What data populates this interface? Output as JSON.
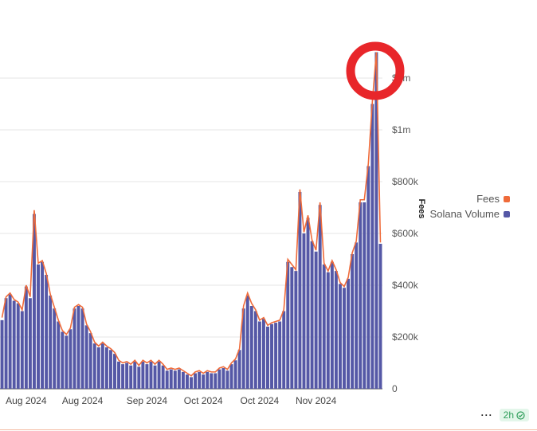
{
  "chart_data": {
    "type": "bar",
    "title": "",
    "ylabel": "Fees",
    "ylim": [
      0,
      1200000
    ],
    "y_ticks": [
      {
        "value": 0,
        "label": "0"
      },
      {
        "value": 200000,
        "label": "$200k"
      },
      {
        "value": 400000,
        "label": "$400k"
      },
      {
        "value": 600000,
        "label": "$600k"
      },
      {
        "value": 800000,
        "label": "$800k"
      },
      {
        "value": 1000000,
        "label": "$1m"
      },
      {
        "value": 1200000,
        "label": "$1m"
      }
    ],
    "x_ticks": [
      {
        "index": 6,
        "label": "Aug 2024"
      },
      {
        "index": 20,
        "label": "Aug 2024"
      },
      {
        "index": 36,
        "label": "Sep 2024"
      },
      {
        "index": 50,
        "label": "Oct 2024"
      },
      {
        "index": 64,
        "label": "Oct 2024"
      },
      {
        "index": 78,
        "label": "Nov 2024"
      }
    ],
    "legend_position": "right",
    "series": [
      {
        "name": "Solana Volume",
        "color": "#5558a6",
        "values": [
          265000,
          350000,
          365000,
          340000,
          330000,
          300000,
          395000,
          350000,
          675000,
          480000,
          490000,
          440000,
          360000,
          310000,
          260000,
          220000,
          205000,
          230000,
          310000,
          320000,
          310000,
          245000,
          215000,
          175000,
          160000,
          175000,
          160000,
          150000,
          135000,
          105000,
          95000,
          100000,
          90000,
          105000,
          85000,
          105000,
          95000,
          105000,
          90000,
          105000,
          90000,
          70000,
          75000,
          70000,
          75000,
          65000,
          55000,
          45000,
          60000,
          65000,
          55000,
          65000,
          60000,
          60000,
          75000,
          80000,
          70000,
          95000,
          110000,
          150000,
          310000,
          360000,
          320000,
          300000,
          260000,
          270000,
          240000,
          250000,
          255000,
          260000,
          300000,
          490000,
          470000,
          455000,
          760000,
          600000,
          660000,
          570000,
          530000,
          710000,
          480000,
          450000,
          490000,
          455000,
          405000,
          390000,
          425000,
          520000,
          565000,
          720000,
          720000,
          860000,
          1100000,
          1300000,
          560000
        ]
      },
      {
        "name": "Fees",
        "color": "#ef6b3a",
        "values": [
          275000,
          355000,
          370000,
          345000,
          335000,
          305000,
          400000,
          355000,
          690000,
          485000,
          495000,
          445000,
          365000,
          315000,
          265000,
          225000,
          210000,
          235000,
          315000,
          325000,
          315000,
          250000,
          220000,
          180000,
          165000,
          180000,
          165000,
          155000,
          140000,
          110000,
          100000,
          105000,
          95000,
          110000,
          90000,
          110000,
          100000,
          110000,
          95000,
          110000,
          95000,
          75000,
          80000,
          75000,
          80000,
          70000,
          60000,
          50000,
          65000,
          70000,
          60000,
          70000,
          65000,
          65000,
          80000,
          85000,
          75000,
          100000,
          115000,
          155000,
          320000,
          370000,
          330000,
          305000,
          265000,
          275000,
          245000,
          255000,
          260000,
          265000,
          305000,
          500000,
          480000,
          460000,
          770000,
          605000,
          670000,
          575000,
          535000,
          720000,
          485000,
          455000,
          495000,
          460000,
          410000,
          395000,
          430000,
          525000,
          570000,
          730000,
          730000,
          870000,
          1110000,
          1300000,
          565000
        ]
      }
    ]
  },
  "footer": {
    "more_label": "···",
    "badge_label": "2h"
  }
}
